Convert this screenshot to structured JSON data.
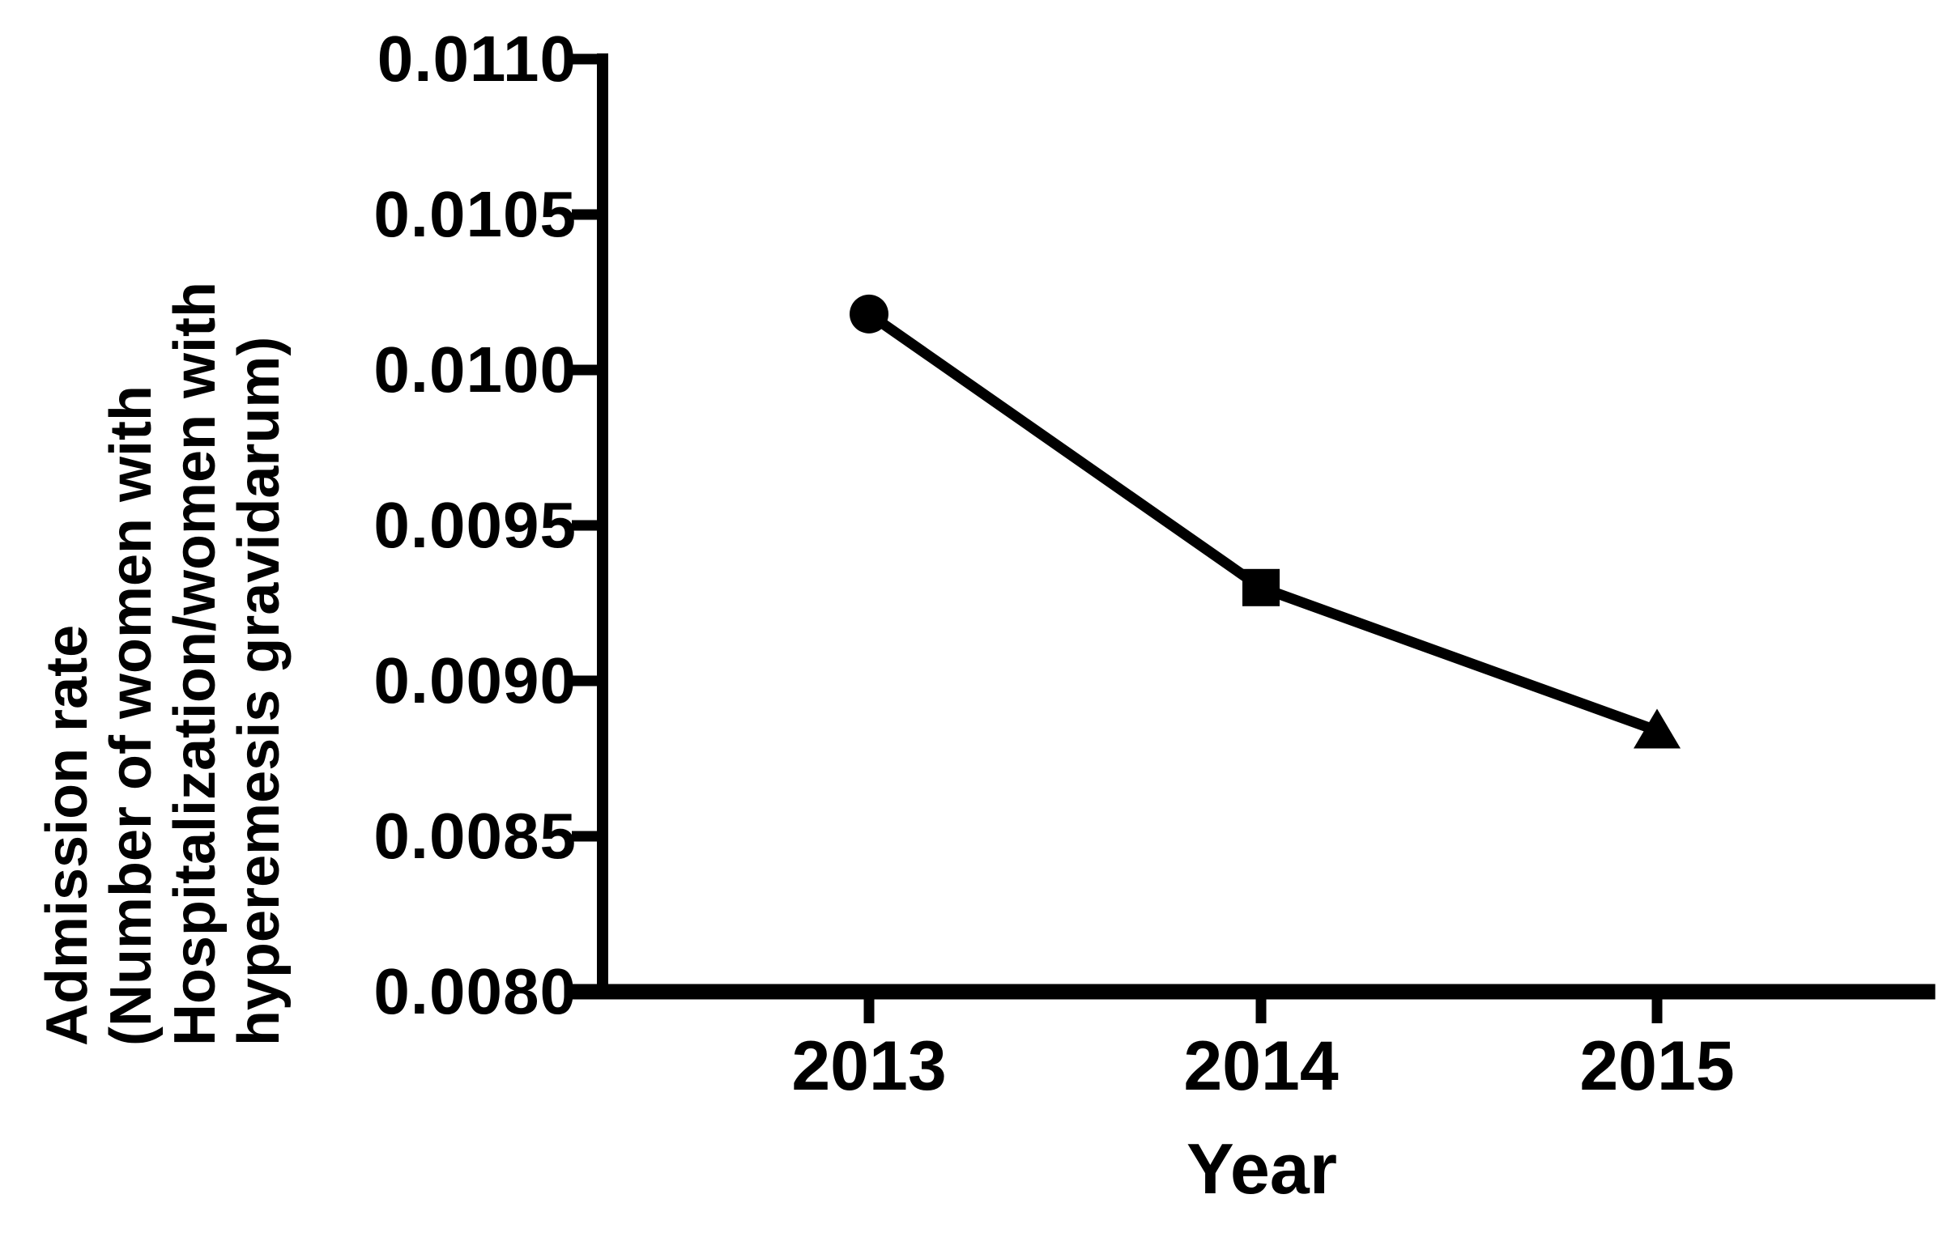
{
  "figure": {
    "background": "#ffffff",
    "ink_color": "#000000"
  },
  "chart_data": {
    "type": "line",
    "title": "",
    "xlabel": "Year",
    "ylabel": "Admission rate (Number of women with Hospitalization/women with hyperemesis gravidarum)",
    "ylabel_lines": [
      "Admission rate",
      "(Number of women with",
      "Hospitalization/women with",
      "hyperemesis gravidarum)"
    ],
    "categories": [
      "2013",
      "2014",
      "2015"
    ],
    "values": [
      0.01018,
      0.0093,
      0.00884
    ],
    "point_markers": [
      "circle",
      "square",
      "triangle"
    ],
    "y_tick_labels": [
      "0.0110",
      "0.0105",
      "0.0100",
      "0.0095",
      "0.0090",
      "0.0085",
      "0.0080"
    ],
    "ylim": [
      0.008,
      0.011
    ],
    "y_tick_step": 0.0005,
    "grid": false,
    "legend": "none",
    "line_color": "#000000",
    "marker_color": "#000000"
  }
}
